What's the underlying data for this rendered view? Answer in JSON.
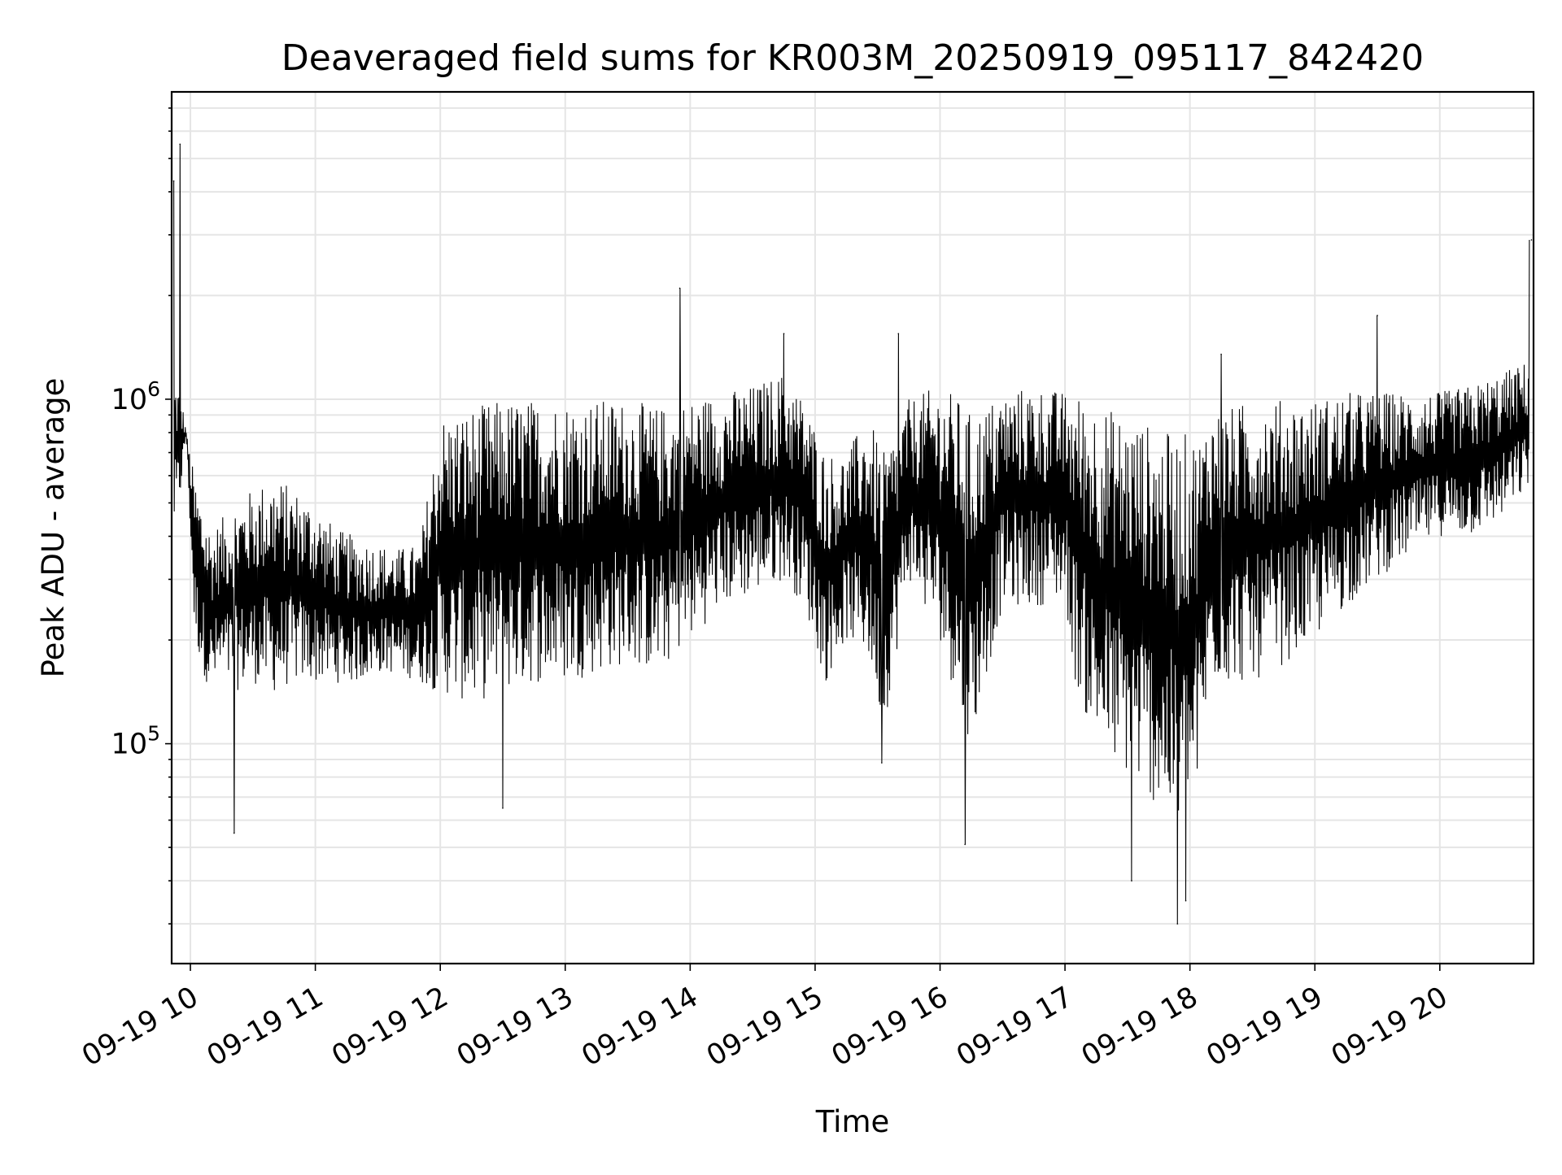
{
  "chart_data": {
    "type": "line",
    "title": "Deaveraged field sums for KR003M_20250919_095117_842420",
    "xlabel": "Time",
    "ylabel": "Peak ADU - average",
    "yscale": "log",
    "ylim": [
      23000,
      7800000
    ],
    "xlim": [
      "2025-09-19 09:51",
      "2025-09-19 20:45"
    ],
    "grid": true,
    "line_color": "#000000",
    "grid_color": "#e5e5e5",
    "x_ticks": [
      {
        "t": "2025-09-19 10:00",
        "label": "09-19 10"
      },
      {
        "t": "2025-09-19 11:00",
        "label": "09-19 11"
      },
      {
        "t": "2025-09-19 12:00",
        "label": "09-19 12"
      },
      {
        "t": "2025-09-19 13:00",
        "label": "09-19 13"
      },
      {
        "t": "2025-09-19 14:00",
        "label": "09-19 14"
      },
      {
        "t": "2025-09-19 15:00",
        "label": "09-19 15"
      },
      {
        "t": "2025-09-19 16:00",
        "label": "09-19 16"
      },
      {
        "t": "2025-09-19 17:00",
        "label": "09-19 17"
      },
      {
        "t": "2025-09-19 18:00",
        "label": "09-19 18"
      },
      {
        "t": "2025-09-19 19:00",
        "label": "09-19 19"
      },
      {
        "t": "2025-09-19 20:00",
        "label": "09-19 20"
      }
    ],
    "y_ticks": [
      {
        "value": 100000,
        "base": "10",
        "exp": "5"
      },
      {
        "value": 1000000,
        "base": "10",
        "exp": "6"
      }
    ],
    "series": [
      {
        "envelope": {
          "time": [
            "2025-09-19 09:52",
            "2025-09-19 09:55",
            "2025-09-19 09:58",
            "2025-09-19 10:02",
            "2025-09-19 10:06",
            "2025-09-19 10:10",
            "2025-09-19 10:15",
            "2025-09-19 10:20",
            "2025-09-19 10:30",
            "2025-09-19 10:40",
            "2025-09-19 10:50",
            "2025-09-19 11:00",
            "2025-09-19 11:10",
            "2025-09-19 11:20",
            "2025-09-19 11:30",
            "2025-09-19 11:40",
            "2025-09-19 11:50",
            "2025-09-19 12:00",
            "2025-09-19 12:15",
            "2025-09-19 12:30",
            "2025-09-19 12:45",
            "2025-09-19 13:00",
            "2025-09-19 13:15",
            "2025-09-19 13:30",
            "2025-09-19 13:45",
            "2025-09-19 14:00",
            "2025-09-19 14:15",
            "2025-09-19 14:30",
            "2025-09-19 14:45",
            "2025-09-19 14:55",
            "2025-09-19 15:05",
            "2025-09-19 15:15",
            "2025-09-19 15:25",
            "2025-09-19 15:33",
            "2025-09-19 15:45",
            "2025-09-19 16:00",
            "2025-09-19 16:10",
            "2025-09-19 16:15",
            "2025-09-19 16:30",
            "2025-09-19 16:45",
            "2025-09-19 17:00",
            "2025-09-19 17:05",
            "2025-09-19 17:10",
            "2025-09-19 17:15",
            "2025-09-19 17:20",
            "2025-09-19 17:30",
            "2025-09-19 17:40",
            "2025-09-19 17:50",
            "2025-09-19 17:55",
            "2025-09-19 18:00",
            "2025-09-19 18:05",
            "2025-09-19 18:10",
            "2025-09-19 18:20",
            "2025-09-19 18:30",
            "2025-09-19 18:45",
            "2025-09-19 19:00",
            "2025-09-19 19:15",
            "2025-09-19 19:30",
            "2025-09-19 19:45",
            "2025-09-19 20:00",
            "2025-09-19 20:15",
            "2025-09-19 20:30",
            "2025-09-19 20:43"
          ],
          "low": [
            400000,
            500000,
            800000,
            200000,
            160000,
            140000,
            150000,
            140000,
            150000,
            140000,
            150000,
            150000,
            150000,
            150000,
            160000,
            160000,
            150000,
            140000,
            130000,
            140000,
            150000,
            150000,
            160000,
            170000,
            160000,
            200000,
            250000,
            270000,
            300000,
            250000,
            150000,
            200000,
            180000,
            110000,
            300000,
            200000,
            120000,
            100000,
            250000,
            250000,
            260000,
            150000,
            120000,
            100000,
            90000,
            80000,
            70000,
            60000,
            50000,
            60000,
            80000,
            150000,
            150000,
            150000,
            170000,
            200000,
            250000,
            300000,
            350000,
            400000,
            400000,
            450000,
            550000
          ],
          "high": [
            1200000,
            1100000,
            800000,
            600000,
            500000,
            420000,
            450000,
            500000,
            550000,
            600000,
            550000,
            500000,
            420000,
            400000,
            380000,
            370000,
            380000,
            900000,
            950000,
            1000000,
            1000000,
            1000000,
            1000000,
            1000000,
            950000,
            1000000,
            1050000,
            1100000,
            1200000,
            1000000,
            700000,
            700000,
            900000,
            700000,
            1000000,
            1100000,
            1000000,
            900000,
            1050000,
            1100000,
            1050000,
            1050000,
            1000000,
            1000000,
            950000,
            900000,
            850000,
            800000,
            800000,
            800000,
            800000,
            950000,
            950000,
            1000000,
            1000000,
            1000000,
            1050000,
            1050000,
            1050000,
            1050000,
            1100000,
            1200000,
            1300000
          ]
        },
        "spikes": [
          {
            "t": "2025-09-19 09:52",
            "value": 4300000
          },
          {
            "t": "2025-09-19 09:55",
            "value": 5500000
          },
          {
            "t": "2025-09-19 13:55",
            "value": 2100000
          },
          {
            "t": "2025-09-19 14:45",
            "value": 1550000
          },
          {
            "t": "2025-09-19 15:40",
            "value": 1550000
          },
          {
            "t": "2025-09-19 18:15",
            "value": 1350000
          },
          {
            "t": "2025-09-19 19:30",
            "value": 1750000
          },
          {
            "t": "2025-09-19 20:44",
            "value": 2900000
          }
        ],
        "dips": [
          {
            "t": "2025-09-19 10:21",
            "value": 55000
          },
          {
            "t": "2025-09-19 12:30",
            "value": 65000
          },
          {
            "t": "2025-09-19 15:32",
            "value": 88000
          },
          {
            "t": "2025-09-19 16:12",
            "value": 51000
          },
          {
            "t": "2025-09-19 17:32",
            "value": 40000
          },
          {
            "t": "2025-09-19 17:54",
            "value": 30000
          },
          {
            "t": "2025-09-19 17:58",
            "value": 35000
          }
        ]
      }
    ]
  }
}
